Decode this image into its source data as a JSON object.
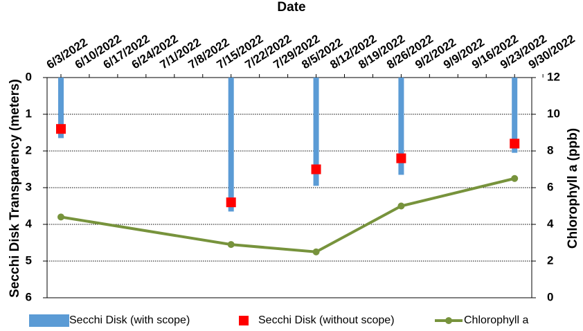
{
  "chart_data": {
    "type": "combo",
    "x_label": "Date",
    "y_label": "Secchi Disk Transparency (meters)",
    "y2_label": "Chlorophyll a (ppb)",
    "xticks": [
      "6/3/2022",
      "6/10/2022",
      "6/17/2022",
      "6/24/2022",
      "7/1/2022",
      "7/8/2022",
      "7/15/2022",
      "7/22/2022",
      "7/29/2022",
      "8/5/2022",
      "8/12/2022",
      "8/19/2022",
      "8/26/2022",
      "9/2/2022",
      "9/9/2022",
      "9/16/2022",
      "9/23/2022",
      "9/30/2022"
    ],
    "x": [
      "6/3/2022",
      "7/15/2022",
      "8/5/2022",
      "8/26/2022",
      "9/23/2022"
    ],
    "ylim": [
      0,
      6
    ],
    "yticks": [
      0,
      1,
      2,
      3,
      4,
      5,
      6
    ],
    "y_inverted": true,
    "y2lim": [
      0,
      12
    ],
    "y2ticks": [
      0,
      2,
      4,
      6,
      8,
      10,
      12
    ],
    "grid": true,
    "series": [
      {
        "name": "Secchi Disk (with scope)",
        "kind": "bar",
        "color": "#5b9bd5",
        "values": [
          1.65,
          3.65,
          2.95,
          2.65,
          2.05
        ]
      },
      {
        "name": "Secchi Disk (without scope)",
        "kind": "square",
        "color": "#ff0000",
        "values": [
          1.4,
          3.4,
          2.5,
          2.2,
          1.8
        ]
      },
      {
        "name": "Chlorophyll a",
        "kind": "line",
        "axis": "y2",
        "color": "#77933c",
        "values": [
          4.4,
          2.9,
          2.5,
          5.0,
          6.5
        ]
      }
    ]
  }
}
